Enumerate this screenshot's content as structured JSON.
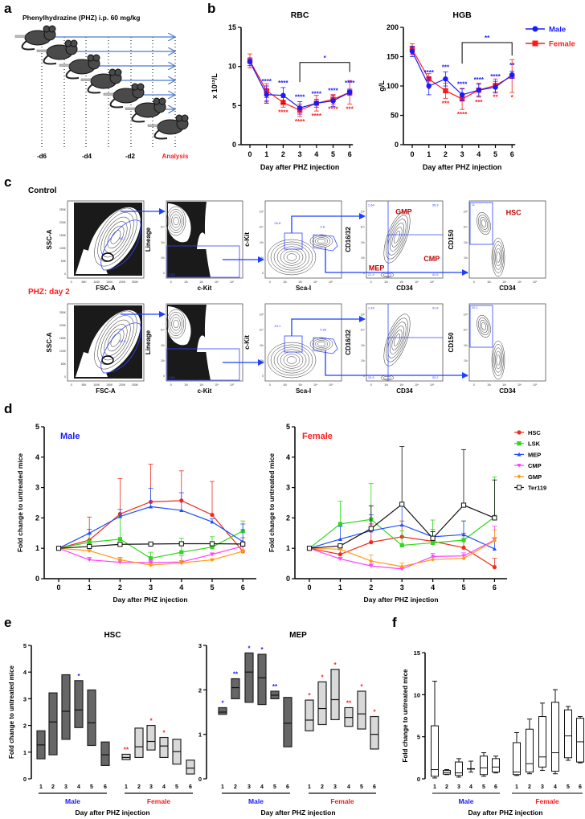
{
  "panel_labels": {
    "a": "a",
    "b": "b",
    "c": "c",
    "d": "d",
    "e": "e",
    "f": "f"
  },
  "colors": {
    "male": "#1a1aff",
    "female": "#ff1a1a",
    "arrow": "#4a7bd0",
    "gate": "#3344ff",
    "population": "#c00000"
  },
  "panel_a": {
    "title": "Phenylhydrazine (PHZ) i.p. 60 mg/kg",
    "timepoints": [
      "-d6",
      "-d4",
      "-d2",
      "Analysis"
    ]
  },
  "panel_c": {
    "row_labels": [
      "Control",
      "PHZ: day 2"
    ],
    "linear_ticks": [
      "0",
      "50K",
      "100K",
      "150K",
      "200K",
      "250K"
    ],
    "log_ticks": [
      "0",
      "10²",
      "10³",
      "10⁴",
      "10⁵"
    ],
    "rows": [
      {
        "plots": [
          {
            "x_label": "FSC-A",
            "y_label": "SSC-A",
            "gates": [
              "81.1"
            ]
          },
          {
            "x_label": "c-Kit",
            "y_label": "Lineage",
            "gates": [
              "3.53"
            ]
          },
          {
            "x_label": "Sca-I",
            "y_label": "c-Kit",
            "gates": [
              "26.8",
              "4.8"
            ]
          },
          {
            "x_label": "CD34",
            "y_label": "CD16/32",
            "gates": [
              "1.64",
              "35.3",
              "21.4",
              "41.6"
            ],
            "populations": [
              "GMP",
              "MEP",
              "CMP"
            ]
          },
          {
            "x_label": "CD34",
            "y_label": "CD150",
            "gates": [
              "11"
            ],
            "populations": [
              "HSC"
            ]
          }
        ]
      },
      {
        "plots": [
          {
            "x_label": "FSC-A",
            "y_label": "SSC-A",
            "gates": [
              "87.5"
            ]
          },
          {
            "x_label": "c-Kit",
            "y_label": "Lineage",
            "gates": [
              "3.83"
            ]
          },
          {
            "x_label": "Sca-I",
            "y_label": "c-Kit",
            "gates": [
              "43.1",
              "5.63"
            ]
          },
          {
            "x_label": "CD34",
            "y_label": "CD16/32",
            "gates": [
              "1.48",
              "31.8",
              "33.5",
              "33.2"
            ]
          },
          {
            "x_label": "CD34",
            "y_label": "CD150",
            "gates": [
              "20.1"
            ]
          }
        ]
      }
    ]
  },
  "chart_data": [
    {
      "type": "line",
      "title": "RBC",
      "ylabel": "x 10¹²/L",
      "xlabel": "Day after PHZ injection",
      "categories": [
        "0",
        "1",
        "2",
        "3",
        "4",
        "5",
        "6"
      ],
      "ylim": [
        0,
        15
      ],
      "yticks": [
        "0",
        "5",
        "10",
        "15"
      ],
      "legend": [
        "Male",
        "Female"
      ],
      "series": [
        {
          "name": "Female",
          "marker": "square",
          "values": [
            10.7,
            6.9,
            5.4,
            4.4,
            5.3,
            5.8,
            6.7
          ],
          "err": [
            0.9,
            0.9,
            0.6,
            0.8,
            1.0,
            0.6,
            1.5
          ],
          "stars": [
            "",
            "**",
            "****",
            "****",
            "****",
            "****",
            "***"
          ]
        },
        {
          "name": "Male",
          "marker": "circle",
          "values": [
            10.6,
            6.4,
            6.3,
            4.7,
            5.3,
            5.6,
            6.7
          ],
          "err": [
            0.5,
            1.1,
            1.0,
            0.8,
            0.5,
            0.7,
            0.4
          ],
          "stars": [
            "",
            "****",
            "****",
            "****",
            "****",
            "****",
            "****"
          ]
        }
      ],
      "bracket": {
        "from": 3,
        "to": 6,
        "level": 10.5,
        "left_end": 8.0,
        "right_end": 9.3,
        "label": "*"
      }
    },
    {
      "type": "line",
      "title": "HGB",
      "ylabel": "g/L",
      "xlabel": "Day after PHZ injection",
      "categories": [
        "0",
        "1",
        "2",
        "3",
        "4",
        "5",
        "6"
      ],
      "ylim": [
        0,
        200
      ],
      "yticks": [
        "0",
        "50",
        "100",
        "150",
        "200"
      ],
      "series": [
        {
          "name": "Female",
          "marker": "square",
          "values": [
            163,
            112,
            92,
            78,
            93,
            101,
            117
          ],
          "err": [
            9,
            9,
            13,
            18,
            12,
            11,
            28
          ],
          "stars": [
            "",
            "*",
            "***",
            "****",
            "***",
            "**",
            "*"
          ]
        },
        {
          "name": "Male",
          "marker": "circle",
          "values": [
            159,
            100,
            112,
            85,
            93,
            98,
            119
          ],
          "err": [
            9,
            15,
            12,
            10,
            10,
            10,
            6
          ],
          "stars": [
            "",
            "****",
            "***",
            "****",
            "****",
            "****",
            "**"
          ]
        }
      ],
      "bracket": {
        "from": 3,
        "to": 6,
        "level": 174,
        "left_end": 138,
        "right_end": 152,
        "label": "**"
      }
    },
    {
      "type": "line",
      "title": "Male",
      "ylabel": "Fold change to untreated mice",
      "xlabel": "Day after PHZ injection",
      "categories": [
        "0",
        "1",
        "2",
        "3",
        "4",
        "5",
        "6"
      ],
      "ylim": [
        0,
        5
      ],
      "yticks": [
        "0",
        "1",
        "2",
        "3",
        "4",
        "5"
      ],
      "series": [
        {
          "name": "HSC",
          "color": "#f42a1a",
          "marker": "circle",
          "values": [
            1,
            1.27,
            2.13,
            2.53,
            2.57,
            2.1,
            0.9
          ],
          "err_upper": [
            1,
            2.03,
            3.3,
            3.77,
            3.55,
            3.2,
            1.35
          ]
        },
        {
          "name": "LSK",
          "color": "#2ed81a",
          "marker": "square",
          "values": [
            1,
            1.2,
            1.3,
            0.67,
            0.87,
            1.04,
            1.57
          ],
          "err_upper": [
            1,
            1.5,
            2.05,
            0.87,
            1.33,
            1.38,
            1.9
          ]
        },
        {
          "name": "MEP",
          "color": "#1f4fff",
          "marker": "triangle",
          "values": [
            1,
            1.5,
            2.05,
            2.37,
            2.25,
            1.87,
            1.22
          ],
          "err_upper": [
            1,
            1.63,
            2.28,
            2.98,
            2.83,
            1.97,
            1.8
          ]
        },
        {
          "name": "CMP",
          "color": "#ff40ff",
          "marker": "triangle-down",
          "values": [
            1,
            0.62,
            0.54,
            0.53,
            0.55,
            0.8,
            1.07
          ],
          "err_upper": [
            1,
            0.7,
            0.7,
            0.6,
            0.75,
            0.85,
            1.1
          ]
        },
        {
          "name": "GMP",
          "color": "#ff9a10",
          "marker": "diamond",
          "values": [
            1,
            0.92,
            0.62,
            0.45,
            0.52,
            0.62,
            0.9
          ],
          "err_upper": [
            1,
            0.95,
            0.66,
            0.5,
            0.6,
            0.66,
            0.95
          ]
        },
        {
          "name": "Ter119",
          "color": "#111111",
          "marker": "open-square",
          "values": [
            1,
            1.06,
            1.13,
            1.14,
            1.15,
            1.15,
            1.14
          ],
          "err_upper": [
            1,
            1.08,
            1.16,
            1.17,
            1.2,
            1.2,
            1.17
          ]
        }
      ]
    },
    {
      "type": "line",
      "title": "Female",
      "ylabel": "Fold change to untreated mice",
      "xlabel": "Day after PHZ injection",
      "categories": [
        "0",
        "1",
        "2",
        "3",
        "4",
        "5",
        "6"
      ],
      "ylim": [
        0,
        5
      ],
      "yticks": [
        "0",
        "1",
        "2",
        "3",
        "4",
        "5"
      ],
      "legend": [
        "HSC",
        "LSK",
        "MEP",
        "CMP",
        "GMP",
        "Ter119"
      ],
      "legend_position": "top-right",
      "series": [
        {
          "name": "HSC",
          "color": "#f42a1a",
          "marker": "circle",
          "values": [
            1,
            0.8,
            1.2,
            1.38,
            1.23,
            1.02,
            0.38
          ],
          "err_upper": [
            1,
            0.95,
            1.8,
            1.9,
            1.62,
            1.5,
            0.67
          ]
        },
        {
          "name": "LSK",
          "color": "#2ed81a",
          "marker": "square",
          "values": [
            1,
            1.8,
            1.95,
            1.1,
            1.18,
            1.27,
            2.03
          ],
          "err_upper": [
            1,
            2.55,
            3.13,
            1.57,
            1.93,
            1.9,
            3.35
          ]
        },
        {
          "name": "MEP",
          "color": "#1f4fff",
          "marker": "triangle",
          "values": [
            1,
            1.3,
            1.58,
            1.77,
            1.38,
            1.45,
            0.98
          ],
          "err_upper": [
            1,
            1.72,
            2.1,
            2.45,
            1.55,
            1.9,
            1.35
          ]
        },
        {
          "name": "CMP",
          "color": "#ff40ff",
          "marker": "triangle-down",
          "values": [
            1,
            0.65,
            0.42,
            0.32,
            0.73,
            0.75,
            1.27
          ],
          "err_upper": [
            1,
            0.7,
            0.5,
            0.4,
            0.83,
            0.85,
            1.73
          ]
        },
        {
          "name": "GMP",
          "color": "#ff9a10",
          "marker": "diamond",
          "values": [
            1,
            0.97,
            0.58,
            0.4,
            0.63,
            0.67,
            1.25
          ],
          "err_upper": [
            1,
            1.05,
            0.78,
            0.52,
            0.7,
            0.75,
            1.6
          ]
        },
        {
          "name": "Ter119",
          "color": "#111111",
          "marker": "open-square",
          "values": [
            1,
            1.08,
            1.65,
            2.45,
            1.33,
            2.42,
            2.0
          ],
          "err_upper": [
            1,
            1.1,
            2.4,
            4.35,
            1.55,
            4.25,
            3.25
          ]
        }
      ]
    },
    {
      "type": "bar",
      "subtype": "floating-bar (min, median, max)",
      "title": "HSC",
      "ylabel": "Fold change to untreated mice",
      "xlabel": "Day after PHZ injection",
      "ylim": [
        0,
        5
      ],
      "yticks": [
        "0",
        "1",
        "2",
        "3",
        "4",
        "5"
      ],
      "groups": [
        {
          "name": "Male",
          "categories": [
            "1",
            "2",
            "3",
            "4",
            "5",
            "6"
          ],
          "values": [
            [
              0.75,
              1.27,
              1.8
            ],
            [
              0.9,
              2.13,
              3.22
            ],
            [
              1.48,
              2.53,
              3.9
            ],
            [
              1.92,
              2.58,
              3.68
            ],
            [
              1.25,
              2.1,
              3.33
            ],
            [
              0.5,
              0.9,
              1.38
            ]
          ],
          "stars": [
            "",
            "",
            "",
            "*",
            "",
            ""
          ]
        },
        {
          "name": "Female",
          "categories": [
            "1",
            "2",
            "3",
            "4",
            "5",
            "6"
          ],
          "values": [
            [
              0.72,
              0.8,
              0.92
            ],
            [
              0.8,
              1.2,
              1.9
            ],
            [
              1.08,
              1.4,
              2.0
            ],
            [
              0.8,
              1.23,
              1.55
            ],
            [
              0.55,
              1.02,
              1.48
            ],
            [
              0.18,
              0.4,
              0.7
            ]
          ],
          "stars": [
            "**",
            "",
            "*",
            "*",
            "",
            ""
          ]
        }
      ]
    },
    {
      "type": "bar",
      "subtype": "floating-bar (min, median, max)",
      "title": "MEP",
      "ylabel": "",
      "xlabel": "Day after PHZ injection",
      "ylim": [
        0,
        3
      ],
      "yticks": [
        "0",
        "1",
        "2",
        "3"
      ],
      "groups": [
        {
          "name": "Male",
          "categories": [
            "1",
            "2",
            "3",
            "4",
            "5",
            "6"
          ],
          "values": [
            [
              1.45,
              1.5,
              1.6
            ],
            [
              1.8,
              2.05,
              2.25
            ],
            [
              1.72,
              2.4,
              2.83
            ],
            [
              1.67,
              2.27,
              2.8
            ],
            [
              1.8,
              1.88,
              1.97
            ],
            [
              0.72,
              1.25,
              1.83
            ]
          ],
          "stars": [
            "*",
            "**",
            "*",
            "*",
            "**",
            ""
          ]
        },
        {
          "name": "Female",
          "categories": [
            "1",
            "2",
            "3",
            "4",
            "5",
            "6"
          ],
          "values": [
            [
              1.08,
              1.32,
              1.77
            ],
            [
              1.22,
              1.58,
              2.18
            ],
            [
              1.33,
              1.78,
              2.46
            ],
            [
              1.18,
              1.38,
              1.6
            ],
            [
              1.12,
              1.46,
              1.97
            ],
            [
              0.67,
              1.0,
              1.4
            ]
          ],
          "stars": [
            "*",
            "*",
            "*",
            "**",
            "*",
            "*"
          ]
        }
      ]
    },
    {
      "type": "box",
      "title": "",
      "ylabel": "Fold change to untreated mice",
      "xlabel": "Day after PHZ injection",
      "ylim": [
        0,
        15
      ],
      "yticks": [
        "0",
        "5",
        "10",
        "15"
      ],
      "groups": [
        {
          "name": "Male",
          "categories": [
            "1",
            "2",
            "3",
            "4",
            "5",
            "6"
          ],
          "values": [
            [
              0.1,
              0.3,
              1.1,
              6.3,
              11.6
            ],
            [
              0.5,
              0.55,
              0.75,
              1.0,
              1.1
            ],
            [
              0.2,
              0.4,
              0.7,
              2.0,
              2.4
            ],
            [
              0.8,
              1.2,
              1.2,
              1.2,
              2.1
            ],
            [
              0.3,
              0.5,
              1.3,
              2.7,
              3.1
            ],
            [
              0.7,
              0.8,
              1.4,
              2.4,
              2.7
            ]
          ]
        },
        {
          "name": "Female",
          "categories": [
            "1",
            "2",
            "3",
            "4",
            "5",
            "6"
          ],
          "values": [
            [
              0.4,
              0.5,
              0.8,
              4.3,
              5.5
            ],
            [
              0.6,
              0.8,
              1.8,
              5.9,
              7.1
            ],
            [
              1.0,
              1.4,
              2.6,
              7.4,
              9.0
            ],
            [
              0.6,
              0.9,
              3.1,
              9.1,
              10.6
            ],
            [
              2.2,
              2.5,
              5.1,
              8.2,
              8.6
            ],
            [
              1.9,
              2.0,
              4.4,
              7.2,
              7.4
            ]
          ]
        }
      ]
    }
  ]
}
